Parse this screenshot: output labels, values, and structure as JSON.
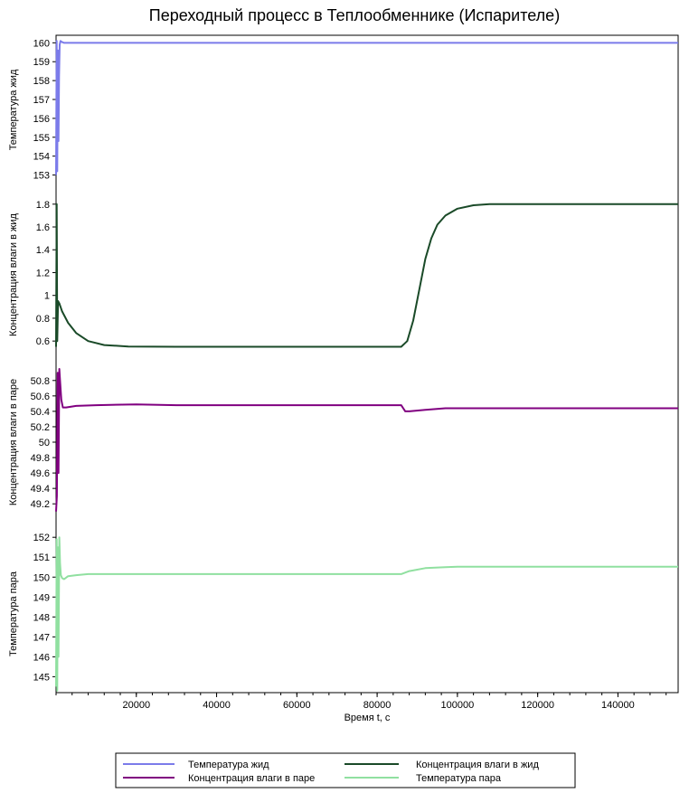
{
  "chart_data": {
    "type": "line",
    "title": "Переходный процесс в Теплообменнике (Испарителе)",
    "xlabel": "Время t, с",
    "xlim": [
      0,
      155000
    ],
    "x_ticks": [
      "20000",
      "40000",
      "60000",
      "80000",
      "100000",
      "120000",
      "140000"
    ],
    "x_tick_values": [
      20000,
      40000,
      60000,
      80000,
      100000,
      120000,
      140000
    ],
    "grid": false,
    "legend_position": "bottom",
    "panels": [
      {
        "ylabel": "Температура жид",
        "ylim": [
          152.5,
          160.4
        ],
        "y_ticks": [
          "153",
          "154",
          "155",
          "156",
          "157",
          "158",
          "159",
          "160"
        ],
        "y_tick_values": [
          153,
          154,
          155,
          156,
          157,
          158,
          159,
          160
        ],
        "series": [
          {
            "name": "Температура жид",
            "color": "#7b7bea",
            "x": [
              0,
              150,
              300,
              450,
              600,
              750,
              900,
              1100,
              1400,
              2000,
              3000,
              155000
            ],
            "y": [
              153,
              160.1,
              153.2,
              159.6,
              154.8,
              158.2,
              159.9,
              160.1,
              160.05,
              160,
              160,
              160
            ]
          }
        ]
      },
      {
        "ylabel": "Концентрация влаги в жид",
        "ylim": [
          0.53,
          1.83
        ],
        "y_ticks": [
          "0.6",
          "0.8",
          "1",
          "1.2",
          "1.4",
          "1.6",
          "1.8"
        ],
        "y_tick_values": [
          0.6,
          0.8,
          1,
          1.2,
          1.4,
          1.6,
          1.8
        ],
        "series": [
          {
            "name": "Концентрация влаги в жид",
            "color": "#1a4a28",
            "x": [
              0,
              150,
              300,
              500,
              800,
              1500,
              3000,
              5000,
              8000,
              12000,
              18000,
              30000,
              60000,
              86000,
              87500,
              89000,
              90500,
              92000,
              93500,
              95000,
              97000,
              100000,
              104000,
              108000,
              115000,
              155000
            ],
            "y": [
              0.55,
              1.8,
              0.6,
              0.95,
              0.93,
              0.86,
              0.76,
              0.67,
              0.6,
              0.565,
              0.552,
              0.55,
              0.55,
              0.55,
              0.6,
              0.78,
              1.05,
              1.32,
              1.5,
              1.62,
              1.7,
              1.76,
              1.79,
              1.8,
              1.8,
              1.8
            ]
          }
        ]
      },
      {
        "ylabel": "Концентрация влаги в паре",
        "ylim": [
          49.05,
          50.95
        ],
        "y_ticks": [
          "49.2",
          "49.4",
          "49.6",
          "49.8",
          "50",
          "50.2",
          "50.4",
          "50.6",
          "50.8"
        ],
        "y_tick_values": [
          49.2,
          49.4,
          49.6,
          49.8,
          50,
          50.2,
          50.4,
          50.6,
          50.8
        ],
        "series": [
          {
            "name": "Концентрация влаги в паре",
            "color": "#800080",
            "x": [
              0,
              200,
              400,
              600,
              800,
              1000,
              1300,
              1700,
              2500,
              5000,
              10000,
              20000,
              30000,
              50000,
              86000,
              87000,
              88000,
              92000,
              97000,
              155000
            ],
            "y": [
              49.1,
              49.3,
              50.9,
              49.6,
              50.95,
              50.8,
              50.55,
              50.45,
              50.45,
              50.47,
              50.48,
              50.49,
              50.48,
              50.48,
              50.48,
              50.4,
              50.4,
              50.42,
              50.44,
              50.44
            ]
          }
        ]
      },
      {
        "ylabel": "Температура пара",
        "ylim": [
          144.2,
          152.1
        ],
        "y_ticks": [
          "145",
          "146",
          "147",
          "148",
          "149",
          "150",
          "151",
          "152"
        ],
        "y_tick_values": [
          145,
          146,
          147,
          148,
          149,
          150,
          151,
          152
        ],
        "series": [
          {
            "name": "Температура пара",
            "color": "#90e0a0",
            "x": [
              0,
              150,
              300,
              450,
              600,
              800,
              1000,
              1200,
              1500,
              2000,
              3000,
              5000,
              8000,
              12000,
              30000,
              60000,
              86000,
              88000,
              92000,
              97000,
              100000,
              155000
            ],
            "y": [
              144.5,
              151.9,
              144.3,
              151.5,
              146,
              152,
              150.7,
              150.1,
              149.95,
              149.9,
              150.05,
              150.1,
              150.15,
              150.15,
              150.15,
              150.15,
              150.15,
              150.3,
              150.45,
              150.5,
              150.52,
              150.52
            ]
          }
        ]
      }
    ]
  }
}
